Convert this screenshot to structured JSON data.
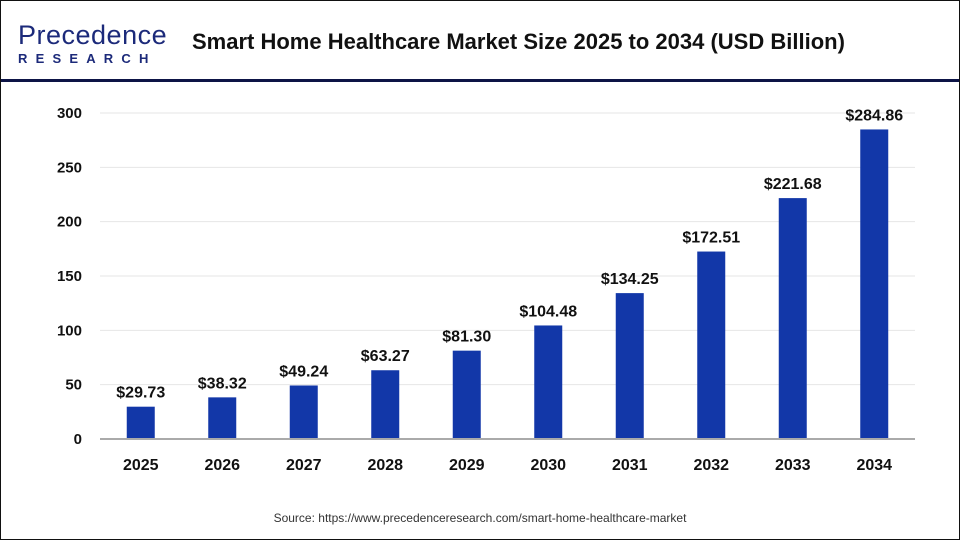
{
  "header": {
    "logo_top": "Precedence",
    "logo_bottom": "RESEARCH",
    "title": "Smart Home Healthcare Market Size 2025 to 2034 (USD Billion)"
  },
  "source": "Source: https://www.precedenceresearch.com/smart-home-healthcare-market",
  "chart_data": {
    "type": "bar",
    "title": "Smart Home Healthcare Market Size 2025 to 2034 (USD Billion)",
    "categories": [
      "2025",
      "2026",
      "2027",
      "2028",
      "2029",
      "2030",
      "2031",
      "2032",
      "2033",
      "2034"
    ],
    "values": [
      29.73,
      38.32,
      49.24,
      63.27,
      81.3,
      104.48,
      134.25,
      172.51,
      221.68,
      284.86
    ],
    "data_labels": [
      "$29.73",
      "$38.32",
      "$49.24",
      "$63.27",
      "$81.30",
      "$104.48",
      "$134.25",
      "$172.51",
      "$221.68",
      "$284.86"
    ],
    "yticks": [
      0,
      50,
      100,
      150,
      200,
      250,
      300
    ],
    "ylim": [
      0,
      300
    ],
    "xlabel": "",
    "ylabel": "",
    "grid": true,
    "bar_color": "#1237a8"
  }
}
